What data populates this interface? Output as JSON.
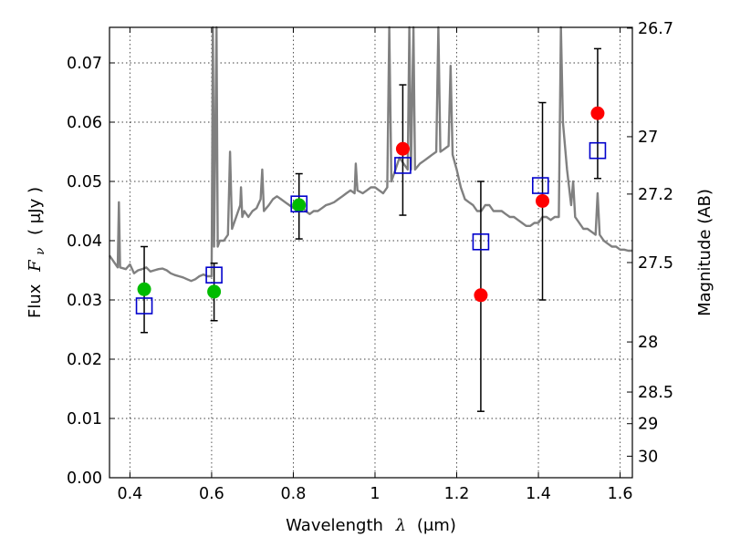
{
  "chart_data": {
    "type": "scatter",
    "title": "",
    "xlabel": {
      "text": "Wavelength",
      "symbol": "λ",
      "unit": "(μm)"
    },
    "ylabel": {
      "text": "Flux",
      "symbol": "F",
      "symbol_sub": "ν",
      "unit": "( μJy )"
    },
    "ylabel_right": "Magnitude (AB)",
    "xlim": [
      0.35,
      1.63
    ],
    "ylim": [
      0.0,
      0.076
    ],
    "grid": true,
    "legend": "none",
    "x_ticks": [
      {
        "value": 0.4,
        "label": "0.4"
      },
      {
        "value": 0.6,
        "label": "0.6"
      },
      {
        "value": 0.8,
        "label": "0.8"
      },
      {
        "value": 1.0,
        "label": "1"
      },
      {
        "value": 1.2,
        "label": "1.2"
      },
      {
        "value": 1.4,
        "label": "1.4"
      },
      {
        "value": 1.6,
        "label": "1.6"
      }
    ],
    "y_ticks": [
      {
        "value": 0.0,
        "label": "0.00"
      },
      {
        "value": 0.01,
        "label": "0.01"
      },
      {
        "value": 0.02,
        "label": "0.02"
      },
      {
        "value": 0.03,
        "label": "0.03"
      },
      {
        "value": 0.04,
        "label": "0.04"
      },
      {
        "value": 0.05,
        "label": "0.05"
      },
      {
        "value": 0.06,
        "label": "0.06"
      },
      {
        "value": 0.07,
        "label": "0.07"
      }
    ],
    "right_ticks": [
      {
        "mag": 26.7,
        "label": "26.7"
      },
      {
        "mag": 27.0,
        "label": "27"
      },
      {
        "mag": 27.2,
        "label": "27.2"
      },
      {
        "mag": 27.5,
        "label": "27.5"
      },
      {
        "mag": 28.0,
        "label": "28"
      },
      {
        "mag": 28.5,
        "label": "28.5"
      },
      {
        "mag": 29.0,
        "label": "29"
      },
      {
        "mag": 30.0,
        "label": "30"
      }
    ],
    "template_spectrum": {
      "color": "#808080",
      "points": [
        [
          0.35,
          0.0375
        ],
        [
          0.36,
          0.0365
        ],
        [
          0.37,
          0.0355
        ],
        [
          0.373,
          0.0465
        ],
        [
          0.376,
          0.0355
        ],
        [
          0.39,
          0.0352
        ],
        [
          0.4,
          0.036
        ],
        [
          0.41,
          0.0345
        ],
        [
          0.42,
          0.035
        ],
        [
          0.43,
          0.0352
        ],
        [
          0.44,
          0.0355
        ],
        [
          0.45,
          0.0348
        ],
        [
          0.46,
          0.035
        ],
        [
          0.47,
          0.0352
        ],
        [
          0.48,
          0.0353
        ],
        [
          0.49,
          0.035
        ],
        [
          0.5,
          0.0345
        ],
        [
          0.51,
          0.0342
        ],
        [
          0.52,
          0.034
        ],
        [
          0.53,
          0.0338
        ],
        [
          0.54,
          0.0335
        ],
        [
          0.55,
          0.0332
        ],
        [
          0.56,
          0.0335
        ],
        [
          0.57,
          0.034
        ],
        [
          0.58,
          0.0343
        ],
        [
          0.59,
          0.034
        ],
        [
          0.6,
          0.034
        ],
        [
          0.603,
          0.076
        ],
        [
          0.606,
          0.039
        ],
        [
          0.612,
          0.076
        ],
        [
          0.615,
          0.039
        ],
        [
          0.62,
          0.04
        ],
        [
          0.63,
          0.04
        ],
        [
          0.64,
          0.041
        ],
        [
          0.645,
          0.055
        ],
        [
          0.65,
          0.042
        ],
        [
          0.66,
          0.044
        ],
        [
          0.67,
          0.046
        ],
        [
          0.672,
          0.049
        ],
        [
          0.675,
          0.044
        ],
        [
          0.68,
          0.045
        ],
        [
          0.69,
          0.044
        ],
        [
          0.7,
          0.045
        ],
        [
          0.71,
          0.0455
        ],
        [
          0.72,
          0.047
        ],
        [
          0.724,
          0.052
        ],
        [
          0.728,
          0.045
        ],
        [
          0.74,
          0.046
        ],
        [
          0.75,
          0.047
        ],
        [
          0.76,
          0.0475
        ],
        [
          0.77,
          0.047
        ],
        [
          0.78,
          0.0465
        ],
        [
          0.79,
          0.046
        ],
        [
          0.8,
          0.0455
        ],
        [
          0.81,
          0.0455
        ],
        [
          0.82,
          0.046
        ],
        [
          0.83,
          0.045
        ],
        [
          0.84,
          0.0445
        ],
        [
          0.85,
          0.045
        ],
        [
          0.86,
          0.045
        ],
        [
          0.87,
          0.0455
        ],
        [
          0.88,
          0.046
        ],
        [
          0.89,
          0.0462
        ],
        [
          0.9,
          0.0465
        ],
        [
          0.91,
          0.047
        ],
        [
          0.92,
          0.0475
        ],
        [
          0.93,
          0.048
        ],
        [
          0.94,
          0.0485
        ],
        [
          0.95,
          0.048
        ],
        [
          0.953,
          0.053
        ],
        [
          0.957,
          0.0485
        ],
        [
          0.97,
          0.048
        ],
        [
          0.98,
          0.0485
        ],
        [
          0.99,
          0.049
        ],
        [
          1.0,
          0.049
        ],
        [
          1.01,
          0.0485
        ],
        [
          1.02,
          0.048
        ],
        [
          1.03,
          0.049
        ],
        [
          1.035,
          0.076
        ],
        [
          1.04,
          0.05
        ],
        [
          1.05,
          0.052
        ],
        [
          1.06,
          0.054
        ],
        [
          1.07,
          0.053
        ],
        [
          1.08,
          0.052
        ],
        [
          1.084,
          0.076
        ],
        [
          1.088,
          0.052
        ],
        [
          1.094,
          0.076
        ],
        [
          1.098,
          0.052
        ],
        [
          1.11,
          0.053
        ],
        [
          1.12,
          0.0535
        ],
        [
          1.13,
          0.054
        ],
        [
          1.14,
          0.0545
        ],
        [
          1.15,
          0.055
        ],
        [
          1.155,
          0.076
        ],
        [
          1.16,
          0.055
        ],
        [
          1.17,
          0.0555
        ],
        [
          1.18,
          0.056
        ],
        [
          1.185,
          0.0695
        ],
        [
          1.19,
          0.0545
        ],
        [
          1.2,
          0.052
        ],
        [
          1.21,
          0.049
        ],
        [
          1.22,
          0.047
        ],
        [
          1.23,
          0.0465
        ],
        [
          1.24,
          0.046
        ],
        [
          1.25,
          0.045
        ],
        [
          1.26,
          0.045
        ],
        [
          1.27,
          0.046
        ],
        [
          1.28,
          0.046
        ],
        [
          1.29,
          0.045
        ],
        [
          1.3,
          0.045
        ],
        [
          1.31,
          0.045
        ],
        [
          1.32,
          0.0445
        ],
        [
          1.33,
          0.044
        ],
        [
          1.34,
          0.044
        ],
        [
          1.35,
          0.0435
        ],
        [
          1.36,
          0.043
        ],
        [
          1.37,
          0.0425
        ],
        [
          1.38,
          0.0425
        ],
        [
          1.39,
          0.043
        ],
        [
          1.4,
          0.043
        ],
        [
          1.41,
          0.044
        ],
        [
          1.42,
          0.044
        ],
        [
          1.43,
          0.0435
        ],
        [
          1.44,
          0.044
        ],
        [
          1.45,
          0.044
        ],
        [
          1.455,
          0.076
        ],
        [
          1.46,
          0.06
        ],
        [
          1.47,
          0.052
        ],
        [
          1.48,
          0.046
        ],
        [
          1.485,
          0.05
        ],
        [
          1.49,
          0.044
        ],
        [
          1.5,
          0.043
        ],
        [
          1.51,
          0.042
        ],
        [
          1.52,
          0.042
        ],
        [
          1.53,
          0.0415
        ],
        [
          1.54,
          0.041
        ],
        [
          1.545,
          0.048
        ],
        [
          1.55,
          0.041
        ],
        [
          1.56,
          0.04
        ],
        [
          1.57,
          0.0395
        ],
        [
          1.58,
          0.039
        ],
        [
          1.59,
          0.039
        ],
        [
          1.6,
          0.0385
        ],
        [
          1.61,
          0.0385
        ],
        [
          1.62,
          0.0383
        ],
        [
          1.63,
          0.0383
        ]
      ]
    },
    "series": [
      {
        "marker": "circle",
        "color": "#00bb00",
        "points": [
          {
            "x": 0.435,
            "y": 0.0318
          },
          {
            "x": 0.606,
            "y": 0.0314
          },
          {
            "x": 0.814,
            "y": 0.046
          }
        ]
      },
      {
        "marker": "circle",
        "color": "#ff0000",
        "points": [
          {
            "x": 1.068,
            "y": 0.0555
          },
          {
            "x": 1.259,
            "y": 0.0308
          },
          {
            "x": 1.41,
            "y": 0.0467
          },
          {
            "x": 1.545,
            "y": 0.0615
          }
        ]
      },
      {
        "marker": "open-square",
        "color": "#0000cc",
        "points": [
          {
            "x": 0.435,
            "y": 0.029
          },
          {
            "x": 0.606,
            "y": 0.0342
          },
          {
            "x": 0.814,
            "y": 0.0462
          },
          {
            "x": 1.068,
            "y": 0.0527
          },
          {
            "x": 1.259,
            "y": 0.0398
          },
          {
            "x": 1.405,
            "y": 0.0493
          },
          {
            "x": 1.545,
            "y": 0.0552
          }
        ]
      }
    ],
    "error_bars": [
      {
        "x": 0.435,
        "y_low": 0.0245,
        "y_high": 0.039
      },
      {
        "x": 0.606,
        "y_low": 0.0265,
        "y_high": 0.0362
      },
      {
        "x": 0.814,
        "y_low": 0.0403,
        "y_high": 0.0513
      },
      {
        "x": 1.068,
        "y_low": 0.0443,
        "y_high": 0.0663
      },
      {
        "x": 1.259,
        "y_low": 0.0112,
        "y_high": 0.05
      },
      {
        "x": 1.41,
        "y_low": 0.03,
        "y_high": 0.0633
      },
      {
        "x": 1.545,
        "y_low": 0.0505,
        "y_high": 0.0724
      }
    ]
  }
}
